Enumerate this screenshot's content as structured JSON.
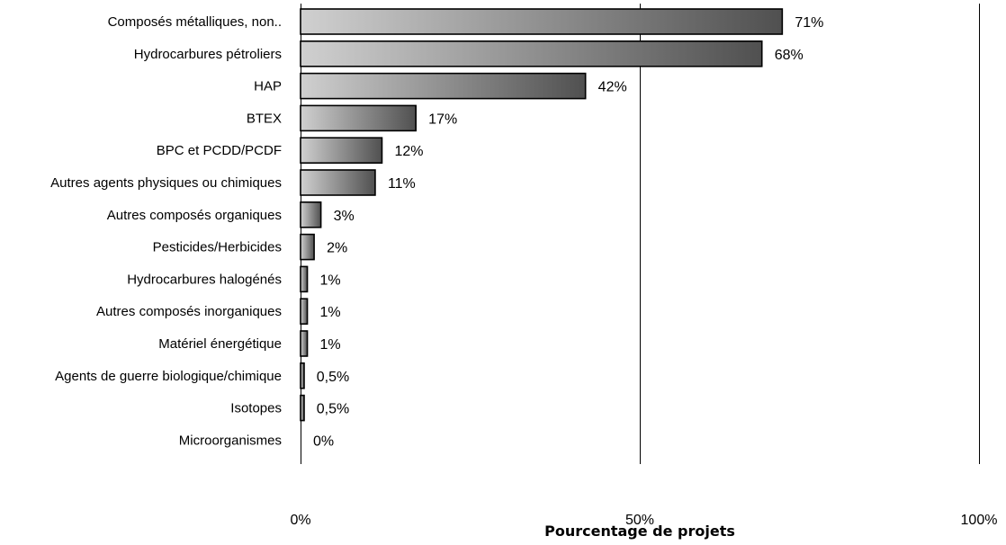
{
  "chart_data": {
    "type": "bar",
    "orientation": "horizontal",
    "title": "",
    "xlabel": "Pourcentage de projets",
    "ylabel": "",
    "xlim": [
      0,
      100
    ],
    "x_ticks": [
      "0%",
      "50%",
      "100%"
    ],
    "grid": "vertical gridlines at 50% and 100%",
    "colors": {
      "bar_light": "#d0d0d0",
      "bar_dark": "#505050",
      "outline": "#000000"
    },
    "categories": [
      "Composés métalliques, non..",
      "Hydrocarbures pétroliers",
      "HAP",
      "BTEX",
      "BPC et PCDD/PCDF",
      "Autres agents physiques ou chimiques",
      "Autres composés organiques",
      "Pesticides/Herbicides",
      "Hydrocarbures halogénés",
      "Autres composés inorganiques",
      "Matériel énergétique",
      "Agents de guerre biologique/chimique",
      "Isotopes",
      "Microorganismes"
    ],
    "values": [
      71,
      68,
      42,
      17,
      12,
      11,
      3,
      2,
      1,
      1,
      1,
      0.5,
      0.5,
      0
    ],
    "value_labels": [
      "71%",
      "68%",
      "42%",
      "17%",
      "12%",
      "11%",
      "3%",
      "2%",
      "1%",
      "1%",
      "1%",
      "0,5%",
      "0,5%",
      "0%"
    ]
  }
}
